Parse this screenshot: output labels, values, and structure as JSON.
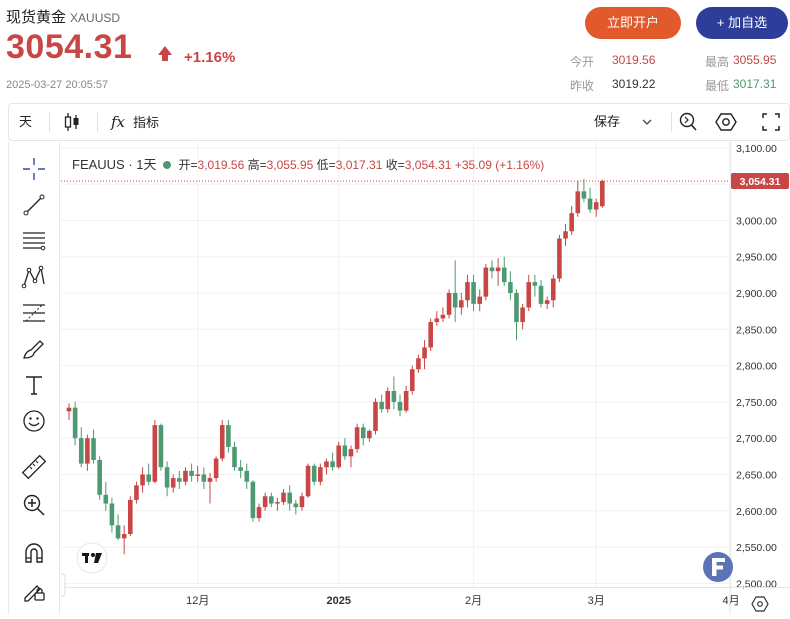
{
  "header": {
    "name": "现货黄金",
    "code": "XAUUSD",
    "price": "3054.31",
    "change": "+1.16%",
    "timestamp": "2025-03-27 20:05:57",
    "open_account_label": "立即开户",
    "add_watch_label": "+ 加自选",
    "stats": {
      "today_open_label": "今开",
      "today_open": "3019.56",
      "high_label": "最高",
      "high": "3055.95",
      "prev_close_label": "昨收",
      "prev_close": "3019.22",
      "low_label": "最低",
      "low": "3017.31"
    }
  },
  "toolbar": {
    "interval_label": "天",
    "indicators_label": "指标",
    "save_label": "保存"
  },
  "legend": {
    "symbol": "FEAUUS · 1天",
    "open_k": "开=",
    "open_v": "3,019.56",
    "high_k": "高=",
    "high_v": "3,055.95",
    "low_k": "低=",
    "low_v": "3,017.31",
    "close_k": "收=",
    "close_v": "3,054.31",
    "delta_v": "+35.09 (+1.16%)"
  },
  "colors": {
    "up": "#c84646",
    "down": "#4d9a72",
    "accent_orange": "#e25a2b",
    "accent_blue": "#2d3e9a"
  },
  "chart_data": {
    "type": "candlestick",
    "last_price_label": "3,054.31",
    "y_ticks": [
      "3,100.00",
      "3,050.00",
      "3,000.00",
      "2,950.00",
      "2,900.00",
      "2,850.00",
      "2,800.00",
      "2,750.00",
      "2,700.00",
      "2,650.00",
      "2,600.00",
      "2,550.00",
      "2,500.00"
    ],
    "y_tick_values": [
      3100,
      3050,
      3000,
      2950,
      2900,
      2850,
      2800,
      2750,
      2700,
      2650,
      2600,
      2550,
      2500
    ],
    "ylim": [
      2495,
      3108
    ],
    "x_ticks": [
      {
        "label": "12月",
        "index": 21,
        "bold": false
      },
      {
        "label": "2025",
        "index": 44,
        "bold": true
      },
      {
        "label": "2月",
        "index": 66,
        "bold": false
      },
      {
        "label": "3月",
        "index": 86,
        "bold": false
      },
      {
        "label": "4月",
        "index": 108,
        "bold": false
      }
    ],
    "grid": true,
    "candles": [
      [
        2737,
        2748,
        2725,
        2742
      ],
      [
        2742,
        2750,
        2690,
        2700
      ],
      [
        2700,
        2715,
        2660,
        2665
      ],
      [
        2665,
        2705,
        2655,
        2700
      ],
      [
        2700,
        2712,
        2665,
        2670
      ],
      [
        2670,
        2675,
        2615,
        2622
      ],
      [
        2622,
        2640,
        2600,
        2610
      ],
      [
        2610,
        2618,
        2570,
        2580
      ],
      [
        2580,
        2595,
        2560,
        2562
      ],
      [
        2562,
        2580,
        2540,
        2568
      ],
      [
        2568,
        2620,
        2565,
        2615
      ],
      [
        2615,
        2640,
        2610,
        2635
      ],
      [
        2635,
        2660,
        2625,
        2650
      ],
      [
        2650,
        2665,
        2635,
        2640
      ],
      [
        2640,
        2725,
        2638,
        2718
      ],
      [
        2718,
        2720,
        2655,
        2660
      ],
      [
        2660,
        2668,
        2620,
        2632
      ],
      [
        2632,
        2650,
        2625,
        2645
      ],
      [
        2645,
        2655,
        2630,
        2640
      ],
      [
        2640,
        2660,
        2635,
        2655
      ],
      [
        2655,
        2665,
        2640,
        2648
      ],
      [
        2648,
        2662,
        2640,
        2650
      ],
      [
        2650,
        2660,
        2630,
        2640
      ],
      [
        2640,
        2652,
        2610,
        2645
      ],
      [
        2645,
        2675,
        2640,
        2672
      ],
      [
        2672,
        2725,
        2668,
        2718
      ],
      [
        2718,
        2725,
        2680,
        2688
      ],
      [
        2688,
        2695,
        2655,
        2660
      ],
      [
        2660,
        2670,
        2645,
        2655
      ],
      [
        2655,
        2665,
        2630,
        2640
      ],
      [
        2640,
        2642,
        2585,
        2590
      ],
      [
        2590,
        2610,
        2585,
        2605
      ],
      [
        2605,
        2625,
        2600,
        2620
      ],
      [
        2620,
        2625,
        2605,
        2610
      ],
      [
        2610,
        2618,
        2600,
        2612
      ],
      [
        2612,
        2630,
        2608,
        2625
      ],
      [
        2625,
        2635,
        2600,
        2610
      ],
      [
        2610,
        2615,
        2595,
        2605
      ],
      [
        2605,
        2625,
        2600,
        2620
      ],
      [
        2620,
        2665,
        2618,
        2662
      ],
      [
        2662,
        2665,
        2635,
        2640
      ],
      [
        2640,
        2665,
        2635,
        2660
      ],
      [
        2660,
        2672,
        2650,
        2668
      ],
      [
        2668,
        2680,
        2655,
        2660
      ],
      [
        2660,
        2695,
        2658,
        2690
      ],
      [
        2690,
        2700,
        2670,
        2675
      ],
      [
        2675,
        2690,
        2660,
        2685
      ],
      [
        2685,
        2720,
        2680,
        2715
      ],
      [
        2715,
        2720,
        2690,
        2700
      ],
      [
        2700,
        2712,
        2695,
        2710
      ],
      [
        2710,
        2755,
        2705,
        2750
      ],
      [
        2750,
        2760,
        2735,
        2740
      ],
      [
        2740,
        2770,
        2735,
        2765
      ],
      [
        2765,
        2785,
        2740,
        2750
      ],
      [
        2750,
        2760,
        2730,
        2738
      ],
      [
        2738,
        2772,
        2735,
        2765
      ],
      [
        2765,
        2800,
        2760,
        2795
      ],
      [
        2795,
        2815,
        2790,
        2810
      ],
      [
        2810,
        2835,
        2795,
        2825
      ],
      [
        2825,
        2865,
        2820,
        2860
      ],
      [
        2860,
        2875,
        2855,
        2865
      ],
      [
        2865,
        2880,
        2860,
        2870
      ],
      [
        2870,
        2905,
        2865,
        2900
      ],
      [
        2900,
        2945,
        2860,
        2880
      ],
      [
        2880,
        2900,
        2870,
        2890
      ],
      [
        2890,
        2925,
        2880,
        2915
      ],
      [
        2915,
        2925,
        2875,
        2885
      ],
      [
        2885,
        2905,
        2875,
        2895
      ],
      [
        2895,
        2940,
        2890,
        2935
      ],
      [
        2935,
        2945,
        2920,
        2930
      ],
      [
        2930,
        2948,
        2910,
        2935
      ],
      [
        2935,
        2950,
        2910,
        2915
      ],
      [
        2915,
        2930,
        2890,
        2900
      ],
      [
        2900,
        2905,
        2835,
        2860
      ],
      [
        2860,
        2885,
        2850,
        2880
      ],
      [
        2880,
        2925,
        2875,
        2915
      ],
      [
        2915,
        2925,
        2895,
        2910
      ],
      [
        2910,
        2918,
        2880,
        2885
      ],
      [
        2885,
        2895,
        2878,
        2890
      ],
      [
        2890,
        2925,
        2880,
        2920
      ],
      [
        2920,
        2980,
        2915,
        2975
      ],
      [
        2975,
        2995,
        2965,
        2985
      ],
      [
        2985,
        3020,
        2980,
        3010
      ],
      [
        3010,
        3055,
        3005,
        3040
      ],
      [
        3040,
        3057,
        3025,
        3030
      ],
      [
        3030,
        3045,
        3010,
        3015
      ],
      [
        3015,
        3030,
        3005,
        3025
      ],
      [
        3019.56,
        3055.95,
        3017.31,
        3054.31
      ]
    ]
  }
}
